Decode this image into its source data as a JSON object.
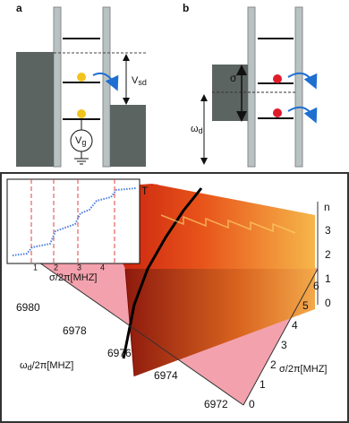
{
  "panel_a": {
    "label": "a",
    "v_sd": {
      "main": "V",
      "sub": "sd"
    },
    "v_g": {
      "main": "V",
      "sub": "g"
    }
  },
  "panel_b": {
    "label": "b",
    "sigma": "σ",
    "omega_d": {
      "main": "ω",
      "sub": "d"
    }
  },
  "panel_c": {
    "inset": {
      "y_label": "T",
      "x_label": "σ/2π[MHZ]",
      "x_ticks": [
        1,
        2,
        3,
        4
      ]
    },
    "z_axis": {
      "label": "n",
      "ticks": [
        0,
        1,
        2,
        3
      ]
    },
    "sigma_axis": {
      "label": "σ/2π[MHZ]",
      "ticks": [
        0,
        1,
        2,
        3,
        4,
        5,
        6
      ]
    },
    "omega_axis": {
      "label": {
        "main": "ω",
        "sub": "d",
        "rest": "/2π[MHZ]"
      },
      "ticks": [
        6980,
        6978,
        6976,
        6974,
        6972
      ]
    }
  }
}
